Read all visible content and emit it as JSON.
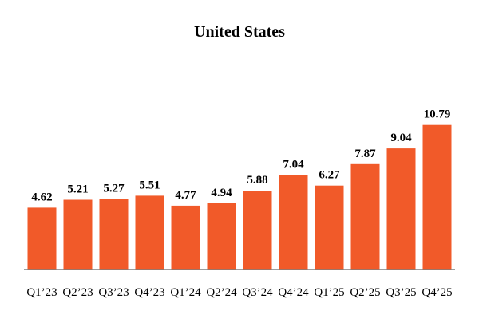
{
  "chart_data": {
    "type": "bar",
    "title": "United States",
    "categories": [
      "Q1’23",
      "Q2’23",
      "Q3’23",
      "Q4’23",
      "Q1’24",
      "Q2’24",
      "Q3’24",
      "Q4’24",
      "Q1’25",
      "Q2’25",
      "Q3’25",
      "Q4’25"
    ],
    "values": [
      4.62,
      5.21,
      5.27,
      5.51,
      4.77,
      4.94,
      5.88,
      7.04,
      6.27,
      7.87,
      9.04,
      10.79
    ],
    "value_labels": [
      "4.62",
      "5.21",
      "5.27",
      "5.51",
      "4.77",
      "4.94",
      "5.88",
      "7.04",
      "6.27",
      "7.87",
      "9.04",
      "10.79"
    ],
    "xlabel": "",
    "ylabel": "",
    "ylim": [
      0,
      12
    ],
    "grid": false,
    "legend": "none",
    "bar_color": "#f15a29",
    "axis_color": "#7f7f7f"
  }
}
